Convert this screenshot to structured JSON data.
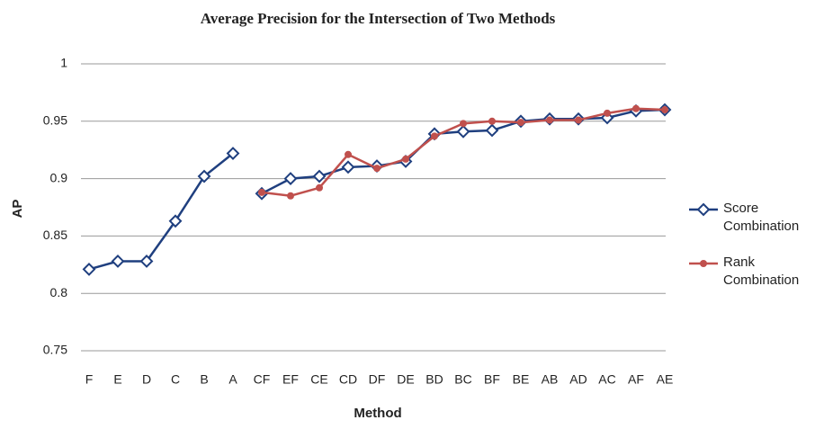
{
  "chart_data": {
    "type": "line",
    "title": "Average Precision for the Intersection of Two Methods",
    "x_label": "Method",
    "y_label": "AP",
    "categories": [
      "F",
      "E",
      "D",
      "C",
      "B",
      "A",
      "CF",
      "EF",
      "CE",
      "CD",
      "DF",
      "DE",
      "BD",
      "BC",
      "BF",
      "BE",
      "AB",
      "AD",
      "AC",
      "AF",
      "AE"
    ],
    "series": [
      {
        "name": "Score Combination",
        "color": "#1f3f7f",
        "marker": "diamond",
        "breaks": [
          5
        ],
        "values": [
          0.821,
          0.828,
          0.828,
          0.863,
          0.902,
          0.922,
          0.887,
          0.9,
          0.902,
          0.91,
          0.911,
          0.915,
          0.939,
          0.941,
          0.942,
          0.95,
          0.952,
          0.952,
          0.953,
          0.959,
          0.96
        ]
      },
      {
        "name": "Rank Combination",
        "color": "#c0504d",
        "marker": "circle",
        "values": [
          null,
          null,
          null,
          null,
          null,
          null,
          0.888,
          0.885,
          0.892,
          0.921,
          0.909,
          0.917,
          0.937,
          0.948,
          0.95,
          0.949,
          0.951,
          0.951,
          0.957,
          0.961,
          0.96
        ]
      }
    ],
    "ylim": [
      0.75,
      1
    ],
    "yticks": [
      0.75,
      0.8,
      0.85,
      0.9,
      0.95,
      1
    ],
    "grid": true,
    "legend": "right"
  }
}
